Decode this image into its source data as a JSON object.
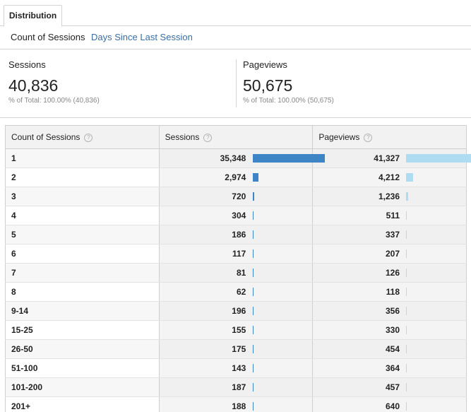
{
  "tabs": {
    "active": "Distribution"
  },
  "subnav": {
    "selected": "Count of Sessions",
    "link": "Days Since Last Session"
  },
  "summary": [
    {
      "label": "Sessions",
      "value": "40,836",
      "pct_prefix": "% of Total: ",
      "pct_value": "100.00% (40,836)"
    },
    {
      "label": "Pageviews",
      "value": "50,675",
      "pct_prefix": "% of Total: ",
      "pct_value": "100.00% (50,675)"
    }
  ],
  "table": {
    "headers": {
      "dimension": "Count of Sessions",
      "sessions": "Sessions",
      "pageviews": "Pageviews",
      "help": "?"
    },
    "rows": [
      {
        "label": "1",
        "sessions": "35,348",
        "pageviews": "41,327",
        "sessions_share": 0.8656,
        "pageviews_share": 0.8155
      },
      {
        "label": "2",
        "sessions": "2,974",
        "pageviews": "4,212",
        "sessions_share": 0.0728,
        "pageviews_share": 0.0831
      },
      {
        "label": "3",
        "sessions": "720",
        "pageviews": "1,236",
        "sessions_share": 0.0176,
        "pageviews_share": 0.0244
      },
      {
        "label": "4",
        "sessions": "304",
        "pageviews": "511",
        "sessions_share": 0.0074,
        "pageviews_share": 0.0101
      },
      {
        "label": "5",
        "sessions": "186",
        "pageviews": "337",
        "sessions_share": 0.0046,
        "pageviews_share": 0.0067
      },
      {
        "label": "6",
        "sessions": "117",
        "pageviews": "207",
        "sessions_share": 0.0029,
        "pageviews_share": 0.0041
      },
      {
        "label": "7",
        "sessions": "81",
        "pageviews": "126",
        "sessions_share": 0.002,
        "pageviews_share": 0.0025
      },
      {
        "label": "8",
        "sessions": "62",
        "pageviews": "118",
        "sessions_share": 0.0015,
        "pageviews_share": 0.0023
      },
      {
        "label": "9-14",
        "sessions": "196",
        "pageviews": "356",
        "sessions_share": 0.0048,
        "pageviews_share": 0.007
      },
      {
        "label": "15-25",
        "sessions": "155",
        "pageviews": "330",
        "sessions_share": 0.0038,
        "pageviews_share": 0.0065
      },
      {
        "label": "26-50",
        "sessions": "175",
        "pageviews": "454",
        "sessions_share": 0.0043,
        "pageviews_share": 0.009
      },
      {
        "label": "51-100",
        "sessions": "143",
        "pageviews": "364",
        "sessions_share": 0.0035,
        "pageviews_share": 0.0072
      },
      {
        "label": "101-200",
        "sessions": "187",
        "pageviews": "457",
        "sessions_share": 0.0046,
        "pageviews_share": 0.009
      },
      {
        "label": "201+",
        "sessions": "188",
        "pageviews": "640",
        "sessions_share": 0.0046,
        "pageviews_share": 0.0126
      }
    ]
  },
  "colors": {
    "sessions_bar": "#3d85c6",
    "pageviews_bar": "#aedcf2",
    "link": "#3a6ea5"
  }
}
